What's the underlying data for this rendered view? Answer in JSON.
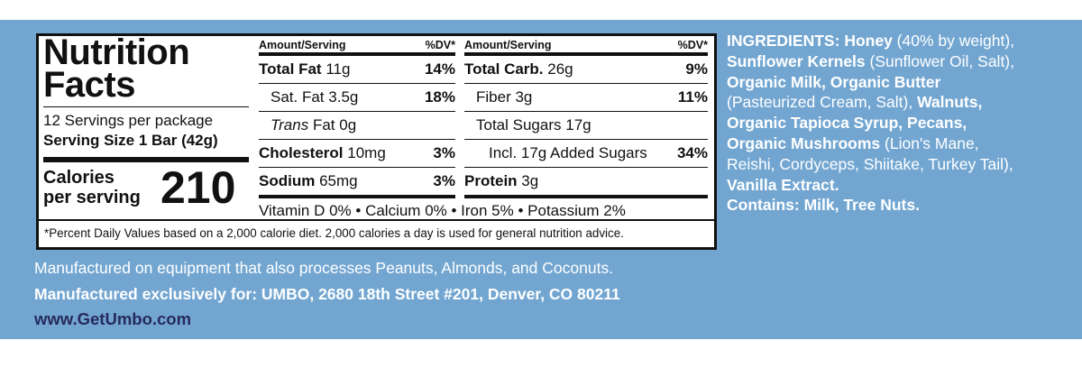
{
  "nutrition": {
    "title_line1": "Nutrition",
    "title_line2": "Facts",
    "servings": "12 Servings per package",
    "serving_size": "Serving Size 1 Bar (42g)",
    "calories_line1": "Calories",
    "calories_line2": "per serving",
    "calories": "210",
    "left_header": {
      "amount": "Amount/Serving",
      "dv": "%DV*"
    },
    "left_rows": [
      {
        "label": "Total Fat",
        "amount": "11g",
        "dv": "14%"
      },
      {
        "label": "Sat. Fat",
        "amount": "3.5g",
        "dv": "18%"
      },
      {
        "italic": "Trans",
        "label": "Fat",
        "amount": "0g"
      },
      {
        "label": "Cholesterol",
        "amount": "10mg",
        "dv": "3%"
      },
      {
        "label": "Sodium",
        "amount": "65mg",
        "dv": "3%"
      }
    ],
    "right_header": {
      "amount": "Amount/Serving",
      "dv": "%DV*"
    },
    "right_rows": [
      {
        "label": "Total Carb.",
        "amount": "26g",
        "dv": "9%"
      },
      {
        "label": "Fiber",
        "amount": "3g",
        "dv": "11%"
      },
      {
        "label": "Total Sugars",
        "amount": "17g"
      },
      {
        "label": "Incl. 17g Added Sugars",
        "dv": "34%"
      },
      {
        "label": "Protein",
        "amount": "3g"
      }
    ],
    "vitamins": "Vitamin D 0% • Calcium 0% • Iron 5% • Potassium 2%",
    "footnote": "*Percent Daily Values based on a 2,000 calorie diet. 2,000 calories a day is used for general nutrition advice."
  },
  "allergen_note": "Manufactured on equipment that also processes Peanuts, Almonds, and Coconuts.",
  "manufacturer": "Manufactured exclusively for: UMBO, 2680 18th Street #201, Denver, CO 80211",
  "website": "www.GetUmbo.com",
  "ingredients": {
    "heading": "INGREDIENTS:",
    "items": [
      {
        "name": "Honey",
        "detail": "(40% by weight),"
      },
      {
        "name": "Sunflower Kernels",
        "detail": "(Sunflower Oil, Salt),"
      },
      {
        "name": "Organic Milk,"
      },
      {
        "name": "Organic Butter",
        "detail": "(Pasteurized Cream, Salt),"
      },
      {
        "name": "Walnuts,"
      },
      {
        "name": "Organic Tapioca Syrup,"
      },
      {
        "name": "Pecans,"
      },
      {
        "name": "Organic Mushrooms",
        "detail": "(Lion's Mane, Reishi, Cordyceps, Shiitake, Turkey Tail),"
      },
      {
        "name": "Vanilla Extract."
      }
    ],
    "contains_label": "Contains:",
    "contains": "Milk, Tree Nuts."
  }
}
